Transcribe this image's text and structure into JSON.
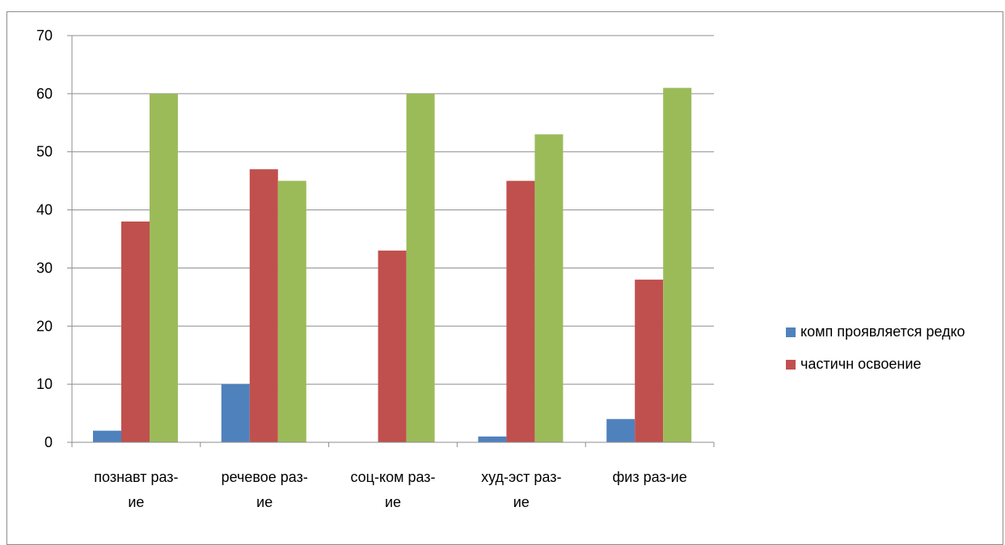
{
  "chart_data": {
    "type": "bar",
    "categories": [
      [
        "познавт раз-",
        "ие"
      ],
      [
        "речевое раз-",
        "ие"
      ],
      [
        "соц-ком раз-",
        "ие"
      ],
      [
        "худ-эст раз-",
        "ие"
      ],
      [
        "физ раз-ие"
      ]
    ],
    "series": [
      {
        "name": "комп проявляется редко",
        "color": "#4f81bd",
        "values": [
          2,
          10,
          0,
          1,
          4
        ]
      },
      {
        "name": "частичн освоение",
        "color": "#c0504d",
        "values": [
          38,
          47,
          33,
          45,
          28
        ]
      },
      {
        "color": "#9bbb59",
        "values": [
          60,
          45,
          60,
          53,
          61
        ]
      }
    ],
    "ylim": [
      0,
      70
    ],
    "yticks": [
      0,
      10,
      20,
      30,
      40,
      50,
      60,
      70
    ],
    "grid": true,
    "legend_position": "right"
  }
}
